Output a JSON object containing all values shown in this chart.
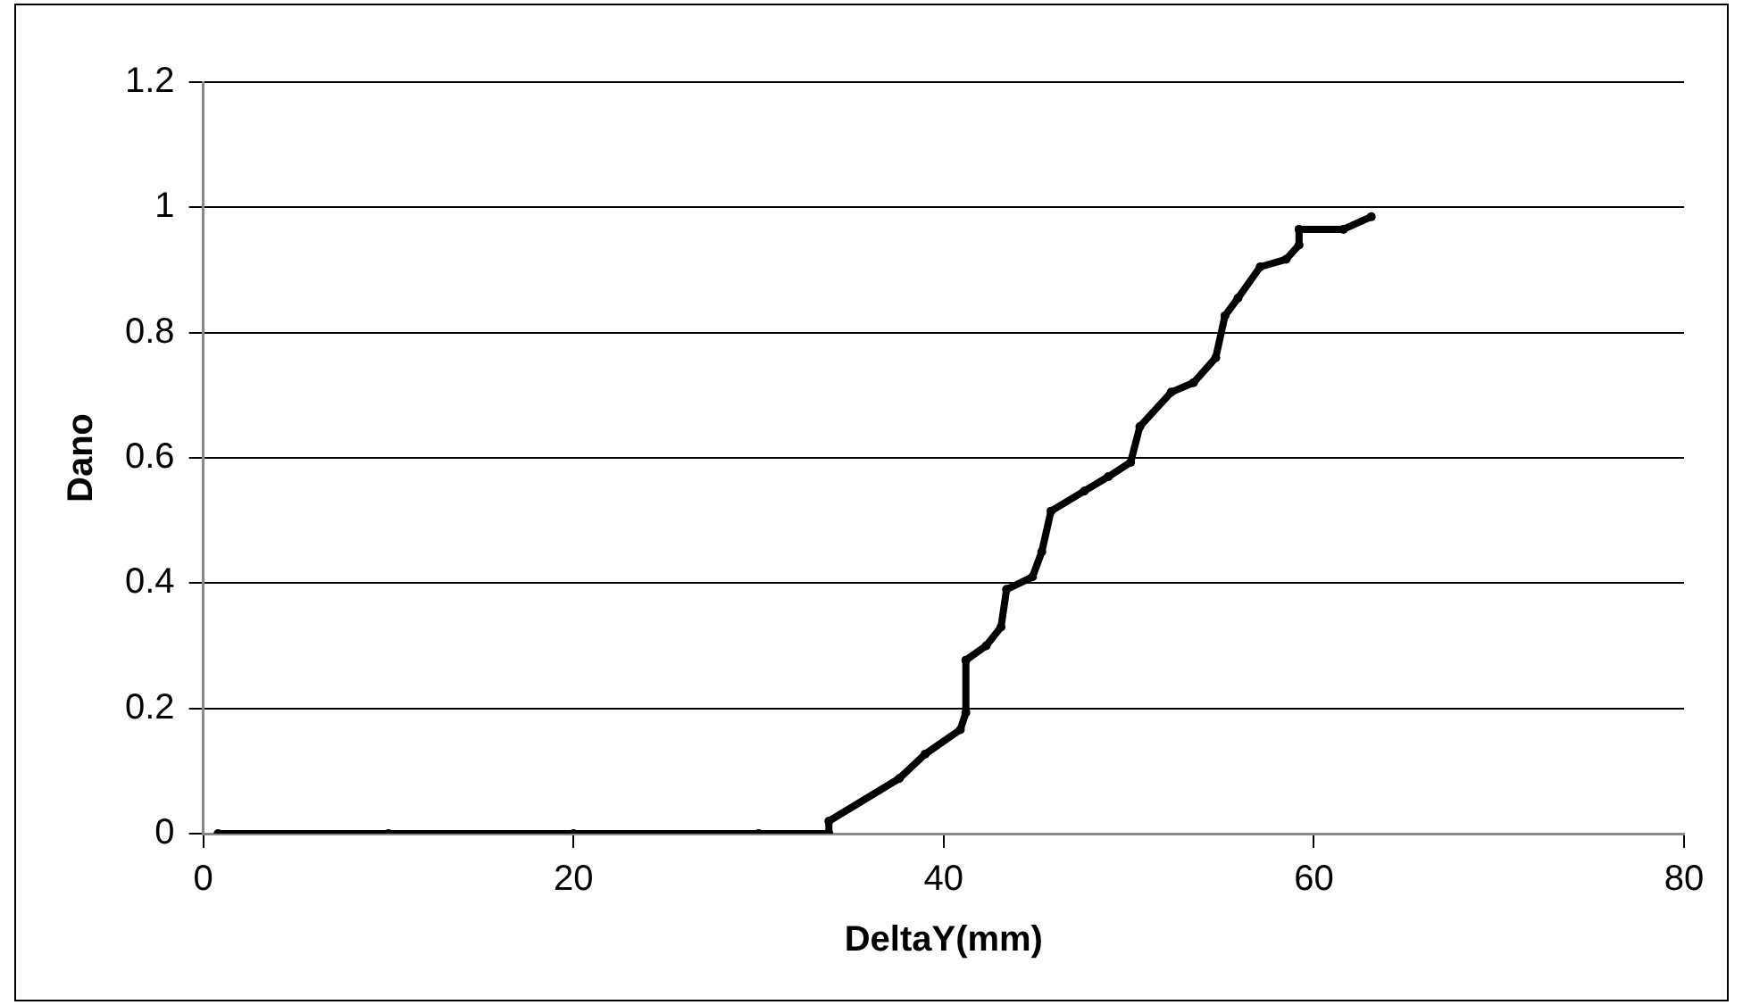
{
  "chart_data": {
    "type": "line",
    "xlabel": "DeltaY(mm)",
    "ylabel": "Dano",
    "xlim": [
      0,
      80
    ],
    "xticks": [
      0,
      20,
      40,
      60,
      80
    ],
    "ylim": [
      0,
      1.2
    ],
    "yticks": [
      0,
      0.2,
      0.4,
      0.6,
      0.8,
      1,
      1.2
    ],
    "grid": "y",
    "legend": false,
    "marker": "circle",
    "line_style": "solid",
    "series": [
      {
        "color": "#000000",
        "x": [
          0.8,
          10,
          20,
          30,
          33.8,
          33.8,
          37.6,
          39.0,
          40.9,
          41.2,
          41.2,
          42.3,
          43.1,
          43.4,
          44.8,
          45.3,
          45.8,
          47.6,
          48.9,
          50.1,
          50.6,
          52.3,
          53.5,
          54.7,
          55.2,
          55.9,
          57.1,
          58.5,
          59.2,
          59.2,
          61.6,
          63.1
        ],
        "values": [
          0,
          0,
          0,
          0,
          0,
          0.02,
          0.088,
          0.127,
          0.166,
          0.193,
          0.277,
          0.3,
          0.33,
          0.39,
          0.41,
          0.45,
          0.515,
          0.547,
          0.57,
          0.593,
          0.65,
          0.705,
          0.72,
          0.76,
          0.827,
          0.855,
          0.905,
          0.917,
          0.94,
          0.965,
          0.965,
          0.985
        ]
      }
    ]
  }
}
